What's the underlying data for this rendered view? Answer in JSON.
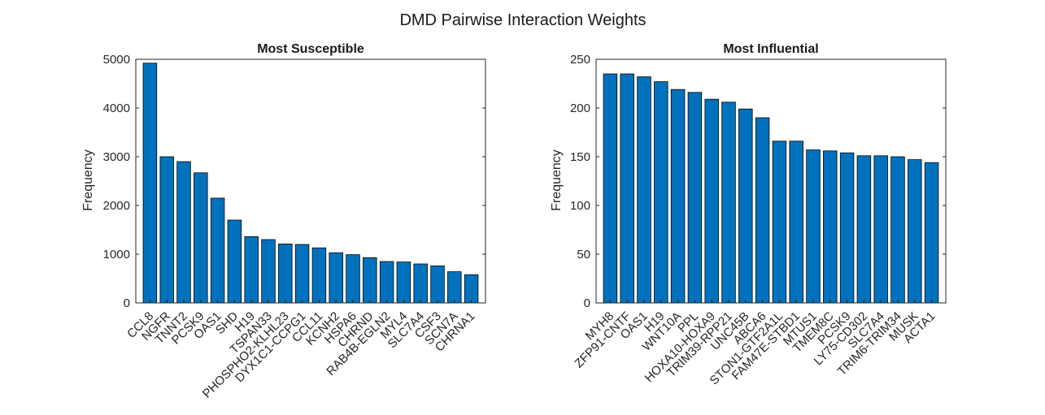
{
  "figure": {
    "title": "DMD Pairwise Interaction Weights"
  },
  "chart_data": [
    {
      "type": "bar",
      "title": "Most Susceptible",
      "xlabel": "",
      "ylabel": "Frequency",
      "ylim": [
        0,
        5000
      ],
      "yticks": [
        0,
        1000,
        2000,
        3000,
        4000,
        5000
      ],
      "grid": false,
      "categories": [
        "CCL8",
        "NGFR",
        "TNNT2",
        "PCSK9",
        "OAS1",
        "SHD",
        "H19",
        "TSPAN33",
        "PHOSPHO2-KLHL23",
        "DYX1C1-CCPG1",
        "CCL11",
        "KCNH2",
        "HSPA6",
        "CHRND",
        "RAB4B-EGLN2",
        "MYL4",
        "SLC7A4",
        "CSF3",
        "SCN7A",
        "CHRNA1"
      ],
      "values": [
        4920,
        3000,
        2900,
        2670,
        2150,
        1700,
        1360,
        1300,
        1210,
        1200,
        1130,
        1030,
        990,
        930,
        850,
        840,
        800,
        760,
        640,
        580
      ]
    },
    {
      "type": "bar",
      "title": "Most Influential",
      "xlabel": "",
      "ylabel": "Frequency",
      "ylim": [
        0,
        250
      ],
      "yticks": [
        0,
        50,
        100,
        150,
        200,
        250
      ],
      "grid": false,
      "categories": [
        "MYH8",
        "ZFP91-CNTF",
        "OAS1",
        "H19",
        "WNT10A",
        "PPL",
        "HOXA10-HOXA9",
        "TRIM39-RPP21",
        "UNC45B",
        "ABCA6",
        "STON1-GTF2A1L",
        "FAM47E-STBD1",
        "MTUS1",
        "TMEM8C",
        "PCSK9",
        "LY75-CD302",
        "SLC7A4",
        "TRIM6-TRIM34",
        "MUSK",
        "ACTA1"
      ],
      "values": [
        235,
        235,
        232,
        227,
        219,
        216,
        209,
        206,
        199,
        190,
        166,
        166,
        157,
        156,
        154,
        151,
        151,
        150,
        147,
        144
      ]
    }
  ]
}
